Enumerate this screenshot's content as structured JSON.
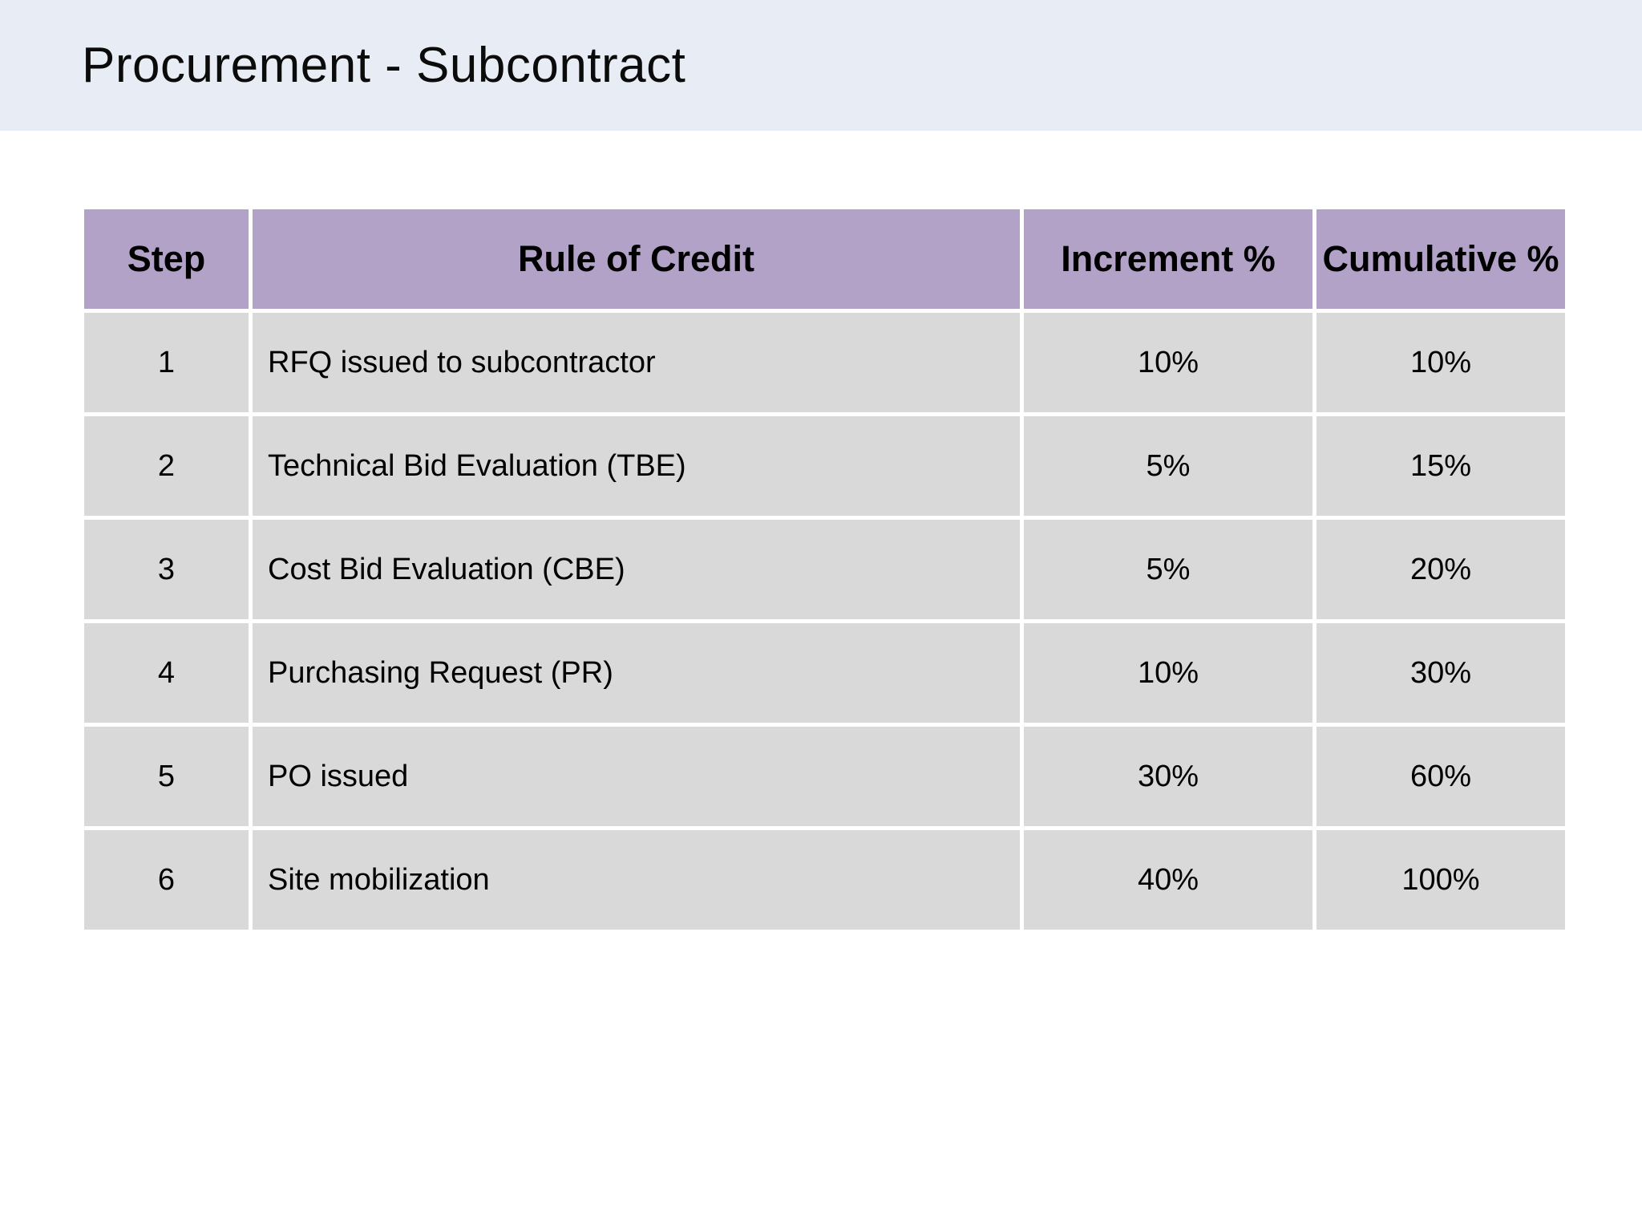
{
  "page": {
    "title": "Procurement - Subcontract"
  },
  "colors": {
    "header_band_bg": "#e8edf5",
    "table_header_bg": "#b2a2c7",
    "table_row_bg": "#d9d9d9",
    "page_bg": "#ffffff",
    "text": "#000000"
  },
  "table": {
    "columns": {
      "step": "Step",
      "rule": "Rule of Credit",
      "increment": "Increment %",
      "cumulative": "Cumulative %"
    },
    "rows": [
      {
        "step": "1",
        "rule": "RFQ issued to subcontractor",
        "increment": "10%",
        "cumulative": "10%"
      },
      {
        "step": "2",
        "rule": "Technical Bid Evaluation (TBE)",
        "increment": "5%",
        "cumulative": "15%"
      },
      {
        "step": "3",
        "rule": "Cost Bid Evaluation (CBE)",
        "increment": "5%",
        "cumulative": "20%"
      },
      {
        "step": "4",
        "rule": "Purchasing Request (PR)",
        "increment": "10%",
        "cumulative": "30%"
      },
      {
        "step": "5",
        "rule": "PO issued",
        "increment": "30%",
        "cumulative": "60%"
      },
      {
        "step": "6",
        "rule": "Site mobilization",
        "increment": "40%",
        "cumulative": "100%"
      }
    ]
  }
}
